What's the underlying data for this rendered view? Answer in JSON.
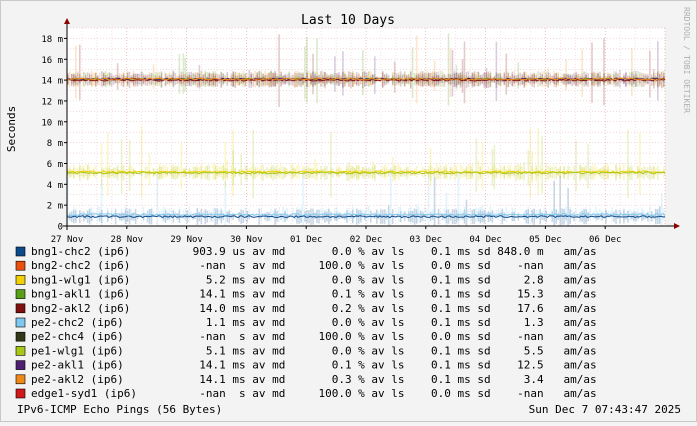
{
  "chart_data": {
    "type": "line",
    "title": "Last 10 Days",
    "ylabel": "Seconds",
    "watermark": "RRDTOOL / TOBI OETIKER",
    "ylim": [
      0,
      0.019
    ],
    "y_ticks": [
      {
        "v": 0,
        "label": "0"
      },
      {
        "v": 0.002,
        "label": "2 m"
      },
      {
        "v": 0.004,
        "label": "4 m"
      },
      {
        "v": 0.006,
        "label": "6 m"
      },
      {
        "v": 0.008,
        "label": "8 m"
      },
      {
        "v": 0.01,
        "label": "10 m"
      },
      {
        "v": 0.012,
        "label": "12 m"
      },
      {
        "v": 0.014,
        "label": "14 m"
      },
      {
        "v": 0.016,
        "label": "16 m"
      },
      {
        "v": 0.018,
        "label": "18 m"
      }
    ],
    "xlim": [
      0,
      10
    ],
    "x_ticks": [
      {
        "v": 0,
        "label": "27 Nov"
      },
      {
        "v": 1,
        "label": "28 Nov"
      },
      {
        "v": 2,
        "label": "29 Nov"
      },
      {
        "v": 3,
        "label": "30 Nov"
      },
      {
        "v": 4,
        "label": "01 Dec"
      },
      {
        "v": 5,
        "label": "02 Dec"
      },
      {
        "v": 6,
        "label": "03 Dec"
      },
      {
        "v": 7,
        "label": "04 Dec"
      },
      {
        "v": 8,
        "label": "05 Dec"
      },
      {
        "v": 9,
        "label": "06 Dec"
      }
    ],
    "grid": true,
    "legend": "bottom",
    "series": [
      {
        "name": "bng1-chc2 (ip6)",
        "color": "#0a4a8a",
        "avg": "903.9 us",
        "loss": "0.0",
        "sd": "0.1 ms",
        "amas": "848.0 m",
        "center": 0.0009
      },
      {
        "name": "bng2-chc2 (ip6)",
        "color": "#e85010",
        "avg": "-nan  s",
        "loss": "100.0",
        "sd": "0.0 ms",
        "amas": "-nan",
        "center": null
      },
      {
        "name": "bng1-wlg1 (ip6)",
        "color": "#f0d000",
        "avg": "5.2 ms",
        "loss": "0.0",
        "sd": "0.1 ms",
        "amas": "2.8",
        "center": 0.0052
      },
      {
        "name": "bng1-akl1 (ip6)",
        "color": "#58a018",
        "avg": "14.1 ms",
        "loss": "0.1",
        "sd": "0.1 ms",
        "amas": "15.3",
        "center": 0.0141
      },
      {
        "name": "bng2-akl2 (ip6)",
        "color": "#801010",
        "avg": "14.0 ms",
        "loss": "0.2",
        "sd": "0.1 ms",
        "amas": "17.6",
        "center": 0.014
      },
      {
        "name": "pe2-chc2 (ip6)",
        "color": "#7ec8f0",
        "avg": "1.1 ms",
        "loss": "0.0",
        "sd": "0.1 ms",
        "amas": "1.3",
        "center": 0.0011
      },
      {
        "name": "pe2-chc4 (ip6)",
        "color": "#303818",
        "avg": "-nan  s",
        "loss": "100.0",
        "sd": "0.0 ms",
        "amas": "-nan",
        "center": null
      },
      {
        "name": "pe1-wlg1 (ip6)",
        "color": "#a8c818",
        "avg": "5.1 ms",
        "loss": "0.0",
        "sd": "0.1 ms",
        "amas": "5.5",
        "center": 0.0051
      },
      {
        "name": "pe2-akl1 (ip6)",
        "color": "#502070",
        "avg": "14.1 ms",
        "loss": "0.1",
        "sd": "0.1 ms",
        "amas": "12.5",
        "center": 0.0141
      },
      {
        "name": "pe2-akl2 (ip6)",
        "color": "#f08818",
        "avg": "14.1 ms",
        "loss": "0.3",
        "sd": "0.1 ms",
        "amas": "3.4",
        "center": 0.0141
      },
      {
        "name": "edge1-syd1 (ip6)",
        "color": "#d01818",
        "avg": "-nan  s",
        "loss": "100.0",
        "sd": "0.0 ms",
        "amas": "-nan",
        "center": null
      }
    ],
    "legend_units": {
      "avg": "av md",
      "loss": "% av ls",
      "sd": "sd",
      "amas": "am/as"
    },
    "footer_left": "IPv6-ICMP Echo Pings (56 Bytes)",
    "footer_right": "Sun Dec  7 07:43:47 2025"
  }
}
